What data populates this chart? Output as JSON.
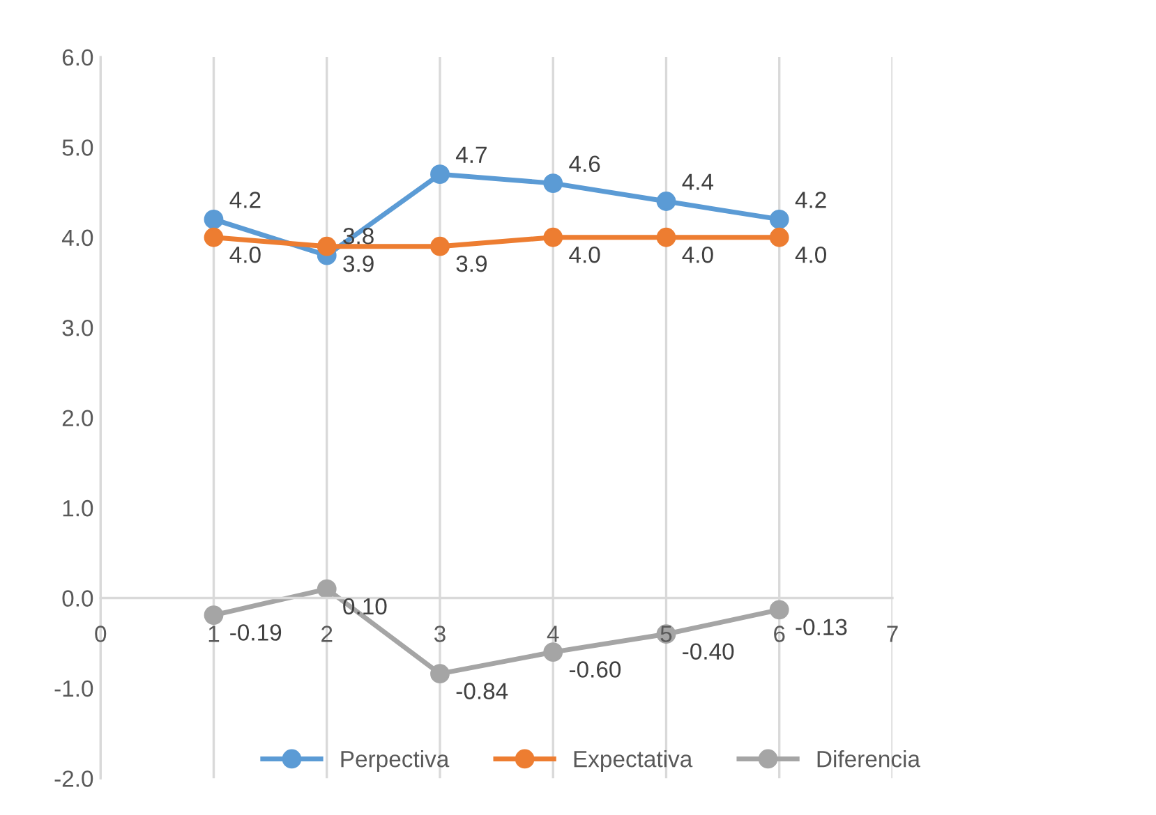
{
  "chart_data": {
    "type": "line",
    "x": [
      1,
      2,
      3,
      4,
      5,
      6
    ],
    "series": [
      {
        "name": "Perpectiva",
        "color": "#5b9bd5",
        "values": [
          4.2,
          3.8,
          4.7,
          4.6,
          4.4,
          4.2
        ],
        "value_labels": [
          "4.2",
          "3.8",
          "4.7",
          "4.6",
          "4.4",
          "4.2"
        ]
      },
      {
        "name": "Expectativa",
        "color": "#ed7d31",
        "values": [
          4.0,
          3.9,
          3.9,
          4.0,
          4.0,
          4.0
        ],
        "value_labels": [
          "4.0",
          "3.9",
          "3.9",
          "4.0",
          "4.0",
          "4.0"
        ]
      },
      {
        "name": "Diferencia",
        "color": "#a5a5a5",
        "values": [
          -0.19,
          0.1,
          -0.84,
          -0.6,
          -0.4,
          -0.13
        ],
        "value_labels": [
          "-0.19",
          "0.10",
          "-0.84",
          "-0.60",
          "-0.40",
          "-0.13"
        ]
      }
    ],
    "xlim": [
      0,
      7
    ],
    "xticks": [
      0,
      1,
      2,
      3,
      4,
      5,
      6,
      7
    ],
    "ylim": [
      -2,
      6
    ],
    "yticks": [
      {
        "value": -2,
        "label": "-2.0"
      },
      {
        "value": -1,
        "label": "-1.0"
      },
      {
        "value": 0,
        "label": "0.0"
      },
      {
        "value": 1,
        "label": "1.0"
      },
      {
        "value": 2,
        "label": "2.0"
      },
      {
        "value": 3,
        "label": "3.0"
      },
      {
        "value": 4,
        "label": "4.0"
      },
      {
        "value": 5,
        "label": "5.0"
      },
      {
        "value": 6,
        "label": "6.0"
      }
    ],
    "grid": "x",
    "legend": "bottom",
    "marker": "circle",
    "line_style": "solid"
  }
}
